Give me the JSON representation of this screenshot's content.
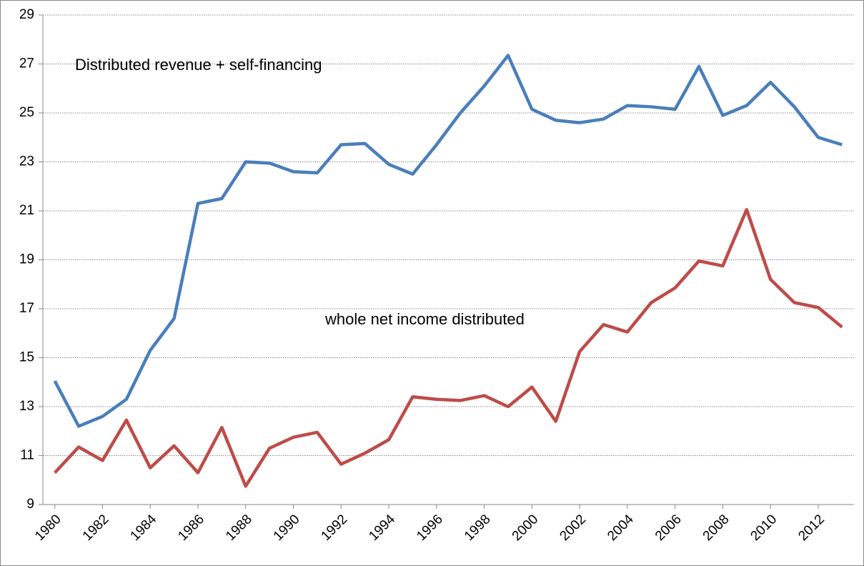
{
  "chart_data": {
    "type": "line",
    "x": [
      1980,
      1981,
      1982,
      1983,
      1984,
      1985,
      1986,
      1987,
      1988,
      1989,
      1990,
      1991,
      1992,
      1993,
      1994,
      1995,
      1996,
      1997,
      1998,
      1999,
      2000,
      2001,
      2002,
      2003,
      2004,
      2005,
      2006,
      2007,
      2008,
      2009,
      2010,
      2011,
      2012,
      2013
    ],
    "series": [
      {
        "name": "Distributed revenue + self-financing",
        "color": "#4a7ebb",
        "values": [
          14.05,
          12.2,
          12.6,
          13.3,
          15.3,
          16.6,
          21.3,
          21.5,
          23.0,
          22.95,
          22.6,
          22.55,
          23.7,
          23.75,
          22.9,
          22.5,
          23.7,
          25.0,
          26.1,
          27.35,
          25.15,
          24.7,
          24.6,
          24.75,
          25.3,
          25.25,
          25.15,
          26.9,
          24.9,
          25.3,
          26.25,
          25.25,
          24.0,
          23.7
        ]
      },
      {
        "name": "whole net income distributed",
        "color": "#be4b48",
        "values": [
          10.3,
          11.35,
          10.8,
          12.45,
          10.5,
          11.4,
          10.3,
          12.15,
          9.75,
          11.3,
          11.75,
          11.95,
          10.65,
          11.1,
          11.65,
          13.4,
          13.3,
          13.25,
          13.45,
          13.0,
          13.8,
          12.4,
          15.25,
          16.35,
          16.05,
          17.25,
          17.85,
          18.95,
          18.75,
          21.05,
          18.2,
          17.25,
          17.05,
          16.25
        ]
      }
    ],
    "xlim": [
      1979.5,
      2013.5
    ],
    "xticks": [
      1980,
      1982,
      1984,
      1986,
      1988,
      1990,
      1992,
      1994,
      1996,
      1998,
      2000,
      2002,
      2004,
      2006,
      2008,
      2010,
      2012
    ],
    "ylim": [
      9,
      29
    ],
    "yticks": [
      9,
      11,
      13,
      15,
      17,
      19,
      21,
      23,
      25,
      27,
      29
    ],
    "grid": true
  }
}
